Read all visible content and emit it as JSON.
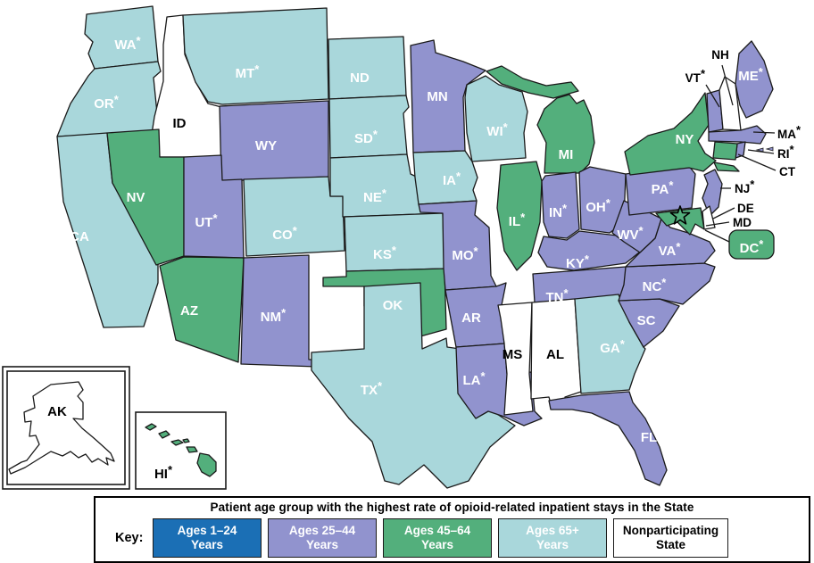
{
  "legend": {
    "title": "Patient age group with the highest rate of opioid-related inpatient stays in the State",
    "key_label": "Key:",
    "entries": [
      {
        "group": "ages_1_24",
        "line1": "Ages 1–24",
        "line2": "Years"
      },
      {
        "group": "ages_25_44",
        "line1": "Ages 25–44",
        "line2": "Years"
      },
      {
        "group": "ages_45_64",
        "line1": "Ages 45–64",
        "line2": "Years"
      },
      {
        "group": "ages_65_plus",
        "line1": "Ages 65+",
        "line2": "Years"
      },
      {
        "group": "nonparticipating",
        "line1": "Nonparticipating",
        "line2": "State"
      }
    ]
  },
  "map": {
    "group_colors": {
      "ages_1_24": "#1B6FB5",
      "ages_25_44": "#9193CE",
      "ages_45_64": "#53AF7C",
      "ages_65_plus": "#A9D7DB",
      "nonparticipating": "#FFFFFF"
    },
    "border_color": "#1A1A1A",
    "states": [
      {
        "id": "WA",
        "label": "WA*",
        "group": "ages_65_plus"
      },
      {
        "id": "OR",
        "label": "OR*",
        "group": "ages_65_plus"
      },
      {
        "id": "CA",
        "label": "CA",
        "group": "ages_65_plus"
      },
      {
        "id": "ID",
        "label": "ID",
        "group": "nonparticipating"
      },
      {
        "id": "NV",
        "label": "NV",
        "group": "ages_45_64"
      },
      {
        "id": "MT",
        "label": "MT*",
        "group": "ages_65_plus"
      },
      {
        "id": "WY",
        "label": "WY",
        "group": "ages_25_44"
      },
      {
        "id": "UT",
        "label": "UT*",
        "group": "ages_25_44"
      },
      {
        "id": "AZ",
        "label": "AZ",
        "group": "ages_45_64"
      },
      {
        "id": "CO",
        "label": "CO*",
        "group": "ages_65_plus"
      },
      {
        "id": "NM",
        "label": "NM*",
        "group": "ages_25_44"
      },
      {
        "id": "ND",
        "label": "ND",
        "group": "ages_65_plus"
      },
      {
        "id": "SD",
        "label": "SD*",
        "group": "ages_65_plus"
      },
      {
        "id": "NE",
        "label": "NE*",
        "group": "ages_65_plus"
      },
      {
        "id": "KS",
        "label": "KS*",
        "group": "ages_65_plus"
      },
      {
        "id": "OK",
        "label": "OK",
        "group": "ages_45_64"
      },
      {
        "id": "TX",
        "label": "TX*",
        "group": "ages_65_plus"
      },
      {
        "id": "MN",
        "label": "MN",
        "group": "ages_25_44"
      },
      {
        "id": "IA",
        "label": "IA*",
        "group": "ages_65_plus"
      },
      {
        "id": "MO",
        "label": "MO*",
        "group": "ages_25_44"
      },
      {
        "id": "AR",
        "label": "AR",
        "group": "ages_25_44"
      },
      {
        "id": "LA",
        "label": "LA*",
        "group": "ages_25_44"
      },
      {
        "id": "WI",
        "label": "WI*",
        "group": "ages_65_plus"
      },
      {
        "id": "IL",
        "label": "IL*",
        "group": "ages_45_64"
      },
      {
        "id": "MS",
        "label": "MS",
        "group": "nonparticipating"
      },
      {
        "id": "MI",
        "label": "MI",
        "group": "ages_45_64"
      },
      {
        "id": "IN",
        "label": "IN*",
        "group": "ages_25_44"
      },
      {
        "id": "OH",
        "label": "OH*",
        "group": "ages_25_44"
      },
      {
        "id": "KY",
        "label": "KY*",
        "group": "ages_25_44"
      },
      {
        "id": "TN",
        "label": "TN*",
        "group": "ages_25_44"
      },
      {
        "id": "AL",
        "label": "AL",
        "group": "nonparticipating"
      },
      {
        "id": "GA",
        "label": "GA*",
        "group": "ages_65_plus"
      },
      {
        "id": "FL",
        "label": "FL",
        "group": "ages_25_44"
      },
      {
        "id": "SC",
        "label": "SC",
        "group": "ages_25_44"
      },
      {
        "id": "NC",
        "label": "NC*",
        "group": "ages_25_44"
      },
      {
        "id": "VA",
        "label": "VA*",
        "group": "ages_25_44"
      },
      {
        "id": "WV",
        "label": "WV*",
        "group": "ages_25_44"
      },
      {
        "id": "PA",
        "label": "PA*",
        "group": "ages_25_44"
      },
      {
        "id": "NY",
        "label": "NY",
        "group": "ages_45_64"
      },
      {
        "id": "VT",
        "label": "VT*",
        "group": "ages_25_44"
      },
      {
        "id": "NH",
        "label": "NH",
        "group": "nonparticipating"
      },
      {
        "id": "ME",
        "label": "ME*",
        "group": "ages_25_44"
      },
      {
        "id": "MA",
        "label": "MA*",
        "group": "ages_25_44"
      },
      {
        "id": "RI",
        "label": "RI*",
        "group": "ages_25_44"
      },
      {
        "id": "CT",
        "label": "CT",
        "group": "ages_45_64"
      },
      {
        "id": "NJ",
        "label": "NJ*",
        "group": "ages_25_44"
      },
      {
        "id": "DE",
        "label": "DE",
        "group": "nonparticipating"
      },
      {
        "id": "MD",
        "label": "MD",
        "group": "ages_45_64"
      },
      {
        "id": "DC",
        "label": "DC*",
        "group": "ages_45_64"
      },
      {
        "id": "AK",
        "label": "AK",
        "group": "nonparticipating"
      },
      {
        "id": "HI",
        "label": "HI*",
        "group": "ages_45_64"
      }
    ]
  }
}
